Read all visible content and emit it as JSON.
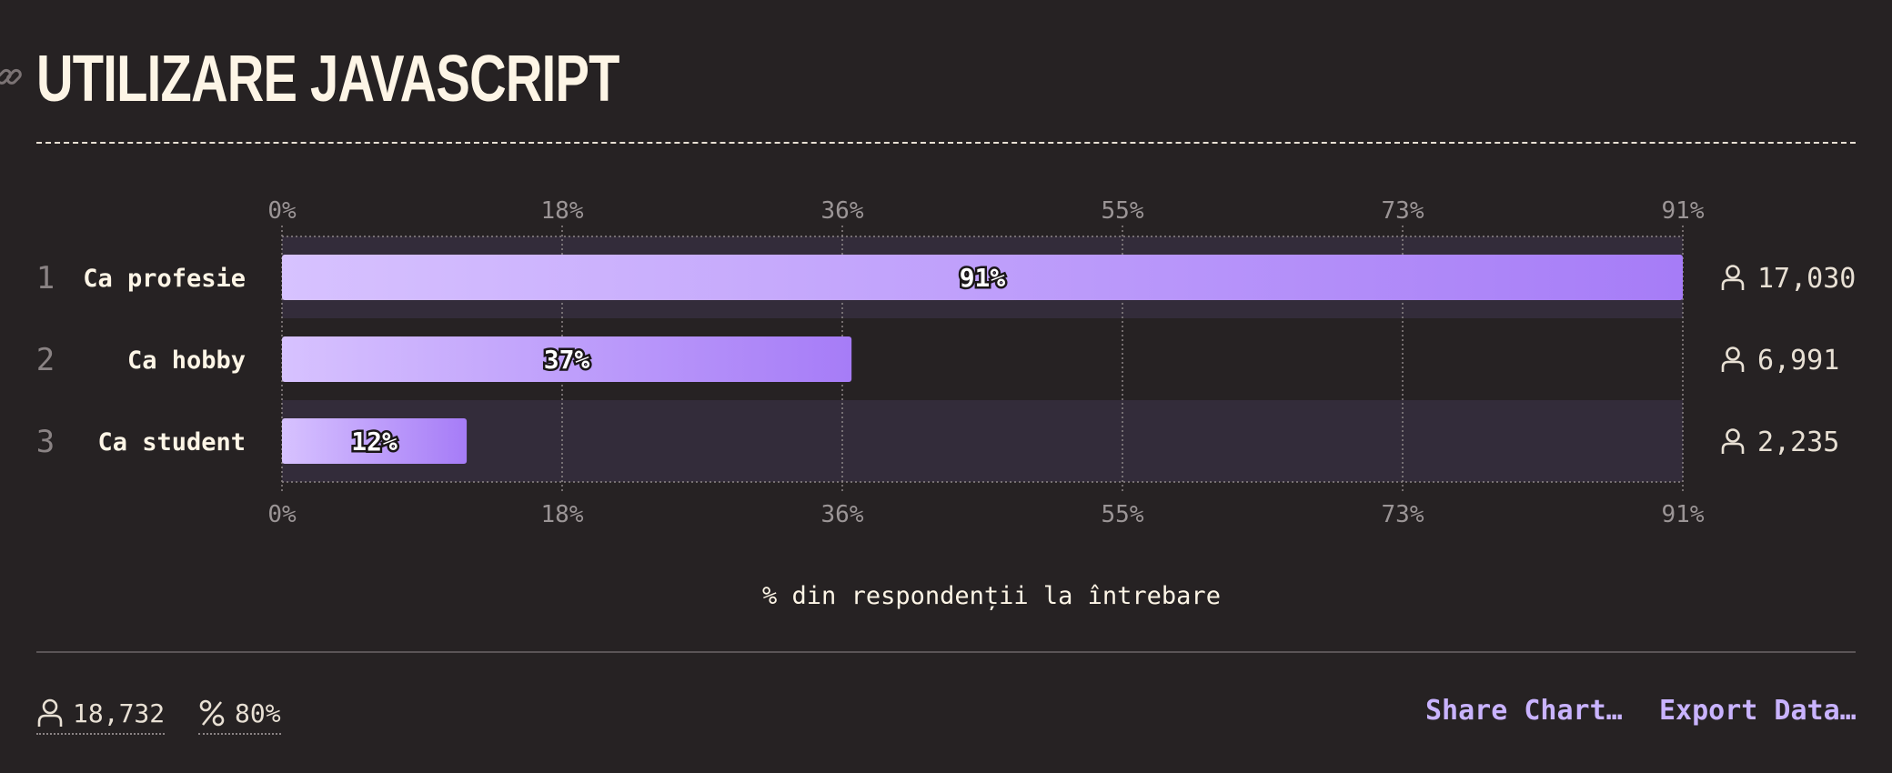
{
  "header": {
    "title": "UTILIZARE JAVASCRIPT"
  },
  "chart_data": {
    "type": "bar",
    "orientation": "horizontal",
    "categories": [
      "Ca profesie",
      "Ca hobby",
      "Ca student"
    ],
    "ranks": [
      "1",
      "2",
      "3"
    ],
    "values": [
      91,
      37,
      12
    ],
    "value_labels": [
      "91%",
      "37%",
      "12%"
    ],
    "counts": [
      "17,030",
      "6,991",
      "2,235"
    ],
    "x_ticks": [
      "0%",
      "18%",
      "36%",
      "55%",
      "73%",
      "91%"
    ],
    "xlim": [
      0,
      91
    ],
    "xlabel": "% din respondenții la întrebare",
    "grid": true,
    "colors": {
      "bar_start": "#d7c2ff",
      "bar_end": "#a67cf7",
      "row_band": "#332c3a",
      "grid": "#8d8687",
      "tick": "#9b9596",
      "category": "#fdf5e6",
      "rank": "#8a8384"
    }
  },
  "footer": {
    "respondents": "18,732",
    "completion": "80%",
    "share_label": "Share Chart…",
    "export_label": "Export Data…"
  },
  "icons": {
    "title": "link-icon",
    "counts": "user-icon",
    "respondents": "user-icon",
    "completion": "percent-icon"
  }
}
